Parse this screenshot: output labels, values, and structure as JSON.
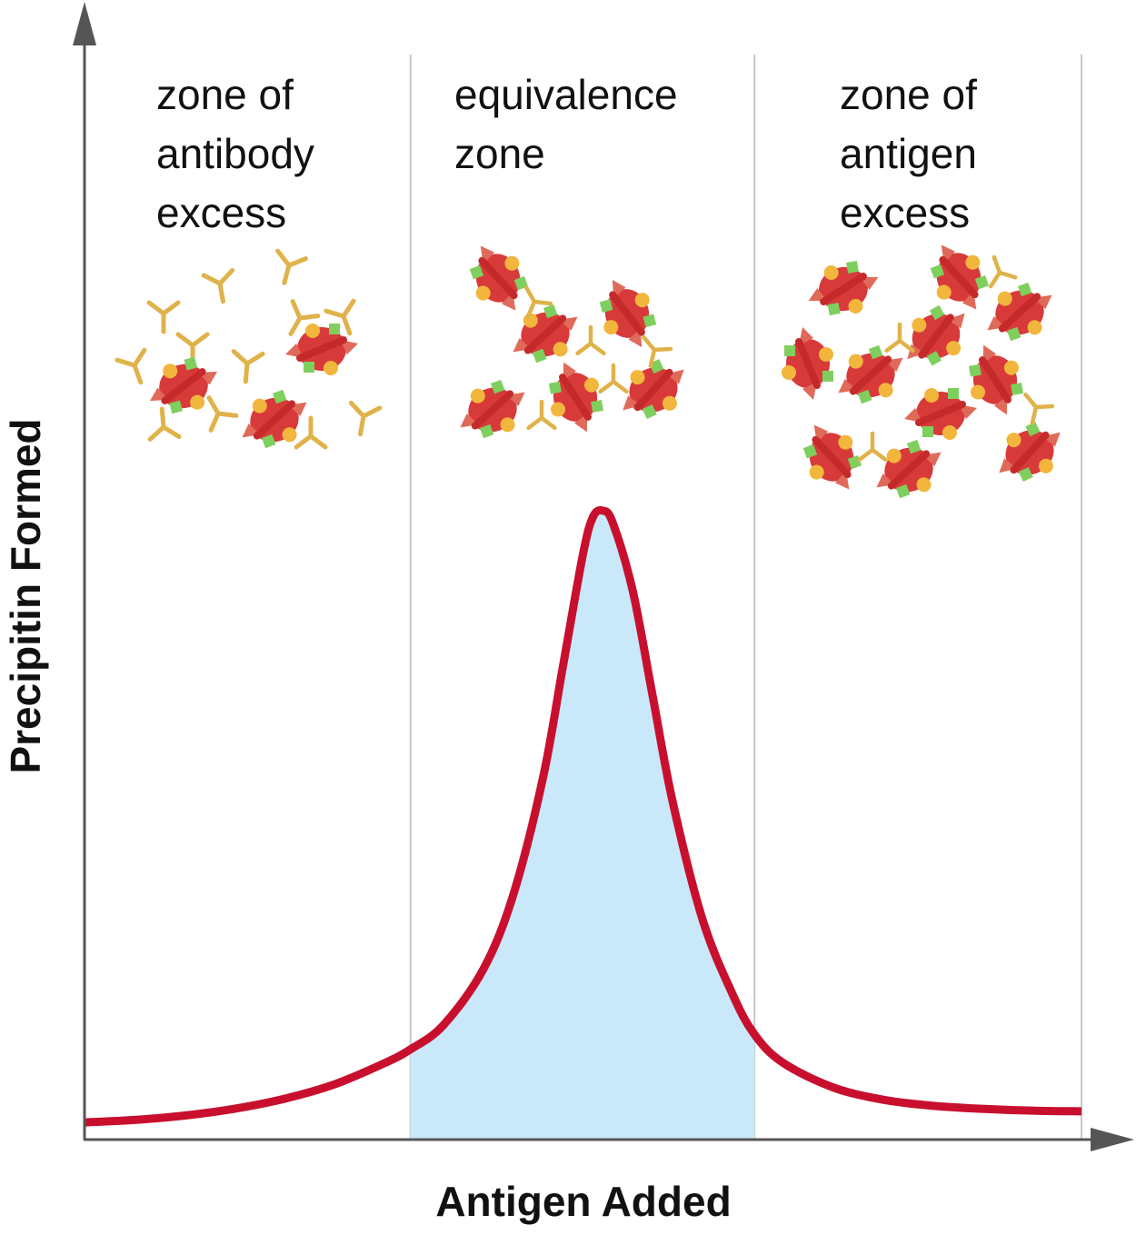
{
  "chart_data": {
    "type": "area",
    "title": "",
    "xlabel": "Antigen Added",
    "ylabel": "Precipitin Formed",
    "xlim": [
      0,
      1
    ],
    "ylim": [
      0,
      1
    ],
    "grid": false,
    "zones": [
      {
        "label": "zone of\nantibody\nexcess",
        "range": [
          0,
          0.327
        ]
      },
      {
        "label": "equivalence\nzone",
        "range": [
          0.327,
          0.672
        ],
        "shaded": true
      },
      {
        "label": "zone of\nantigen\nexcess",
        "range": [
          0.672,
          1.0
        ]
      }
    ],
    "series": [
      {
        "name": "Precipitin curve",
        "x": [
          0,
          0.05,
          0.1,
          0.15,
          0.2,
          0.25,
          0.3,
          0.327,
          0.36,
          0.4,
          0.43,
          0.46,
          0.48,
          0.5,
          0.51,
          0.52,
          0.53,
          0.55,
          0.57,
          0.59,
          0.62,
          0.65,
          0.672,
          0.7,
          0.75,
          0.8,
          0.85,
          0.9,
          0.95,
          1.0
        ],
        "y": [
          0.013,
          0.017,
          0.024,
          0.035,
          0.051,
          0.074,
          0.108,
          0.131,
          0.17,
          0.26,
          0.38,
          0.57,
          0.75,
          0.93,
          0.99,
          1.0,
          0.98,
          0.87,
          0.7,
          0.53,
          0.34,
          0.22,
          0.155,
          0.11,
          0.07,
          0.05,
          0.04,
          0.035,
          0.032,
          0.031
        ]
      }
    ],
    "illustrations": [
      {
        "zone": 0,
        "content": "free antibodies with a few antigens"
      },
      {
        "zone": 1,
        "content": "cross-linked antigen-antibody lattice"
      },
      {
        "zone": 2,
        "content": "antigens with few antibody links"
      }
    ]
  },
  "colors": {
    "curve": "#c8102e",
    "fill": "#c9e9fa",
    "axis": "#555555",
    "divider": "#c8c8c8",
    "antigen": "#d83a3a",
    "antibody": "#e0b24a",
    "epitope_green": "#7fcf5e",
    "epitope_orange": "#f2b63c"
  }
}
